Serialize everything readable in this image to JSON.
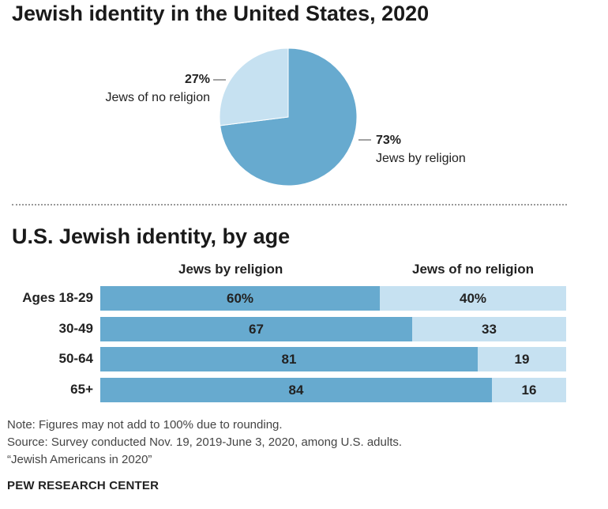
{
  "chart_data": [
    {
      "type": "pie",
      "title": "Jewish identity in the United States, 2020",
      "slices": [
        {
          "label": "Jews by religion",
          "value": 73,
          "value_label": "73%",
          "color": "#67aacf"
        },
        {
          "label": "Jews of no religion",
          "value": 27,
          "value_label": "27%",
          "color": "#c6e1f1"
        }
      ]
    },
    {
      "type": "bar",
      "orientation": "horizontal",
      "stacked": true,
      "title": "U.S. Jewish identity, by age",
      "categories": [
        "Ages 18-29",
        "30-49",
        "50-64",
        "65+"
      ],
      "series": [
        {
          "name": "Jews by religion",
          "values": [
            60,
            67,
            81,
            84
          ],
          "labels": [
            "60%",
            "67",
            "81",
            "84"
          ],
          "color": "#67aacf"
        },
        {
          "name": "Jews of no religion",
          "values": [
            40,
            33,
            19,
            16
          ],
          "labels": [
            "40%",
            "33",
            "19",
            "16"
          ],
          "color": "#c6e1f1"
        }
      ]
    }
  ],
  "notes": {
    "note": "Note: Figures may not add to 100% due to rounding.",
    "source": "Source: Survey conducted Nov. 19, 2019-June 3, 2020, among U.S. adults.",
    "report": "“Jewish Americans in 2020”",
    "brand": "PEW RESEARCH CENTER"
  }
}
